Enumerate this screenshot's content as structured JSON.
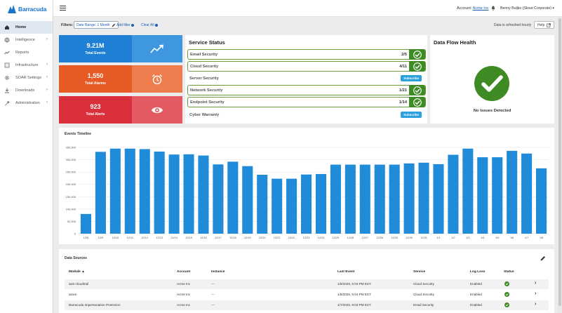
{
  "brand": {
    "name": "Barracuda"
  },
  "sidebar": {
    "items": [
      {
        "label": "Home",
        "icon": "home-icon",
        "active": true,
        "has_children": false
      },
      {
        "label": "Intelligence",
        "icon": "globe-icon",
        "active": false,
        "has_children": true
      },
      {
        "label": "Reports",
        "icon": "trend-icon",
        "active": false,
        "has_children": false
      },
      {
        "label": "Infrastructure",
        "icon": "building-icon",
        "active": false,
        "has_children": true
      },
      {
        "label": "SOAR Settings",
        "icon": "gear-icon",
        "active": false,
        "has_children": true
      },
      {
        "label": "Downloads",
        "icon": "download-icon",
        "active": false,
        "has_children": true
      },
      {
        "label": "Administration",
        "icon": "wrench-icon",
        "active": false,
        "has_children": true
      }
    ]
  },
  "header": {
    "account_label": "Account:",
    "account_name": "Acme Inc",
    "user": "Benny Buljko (Skout Corporate)"
  },
  "filters": {
    "label": "Filters:",
    "chip": "Date Range: 1 Month",
    "add_filter": "Add filter",
    "clear_all": "Clear All",
    "refresh_note": "Data is refreshed hourly",
    "help": "Help"
  },
  "stats": [
    {
      "value": "9.21M",
      "label": "Total Events",
      "icon": "trend-up-icon"
    },
    {
      "value": "1,550",
      "label": "Total Alarms",
      "icon": "alarm-clock-icon"
    },
    {
      "value": "923",
      "label": "Total Alerts",
      "icon": "eye-icon"
    }
  ],
  "service_status": {
    "title": "Service Status",
    "subscribe_label": "Subscribe",
    "rows": [
      {
        "name": "Email Security",
        "count": "2/5",
        "subscribed": true
      },
      {
        "name": "Cloud Security",
        "count": "4/11",
        "subscribed": true
      },
      {
        "name": "Server Security",
        "count": "",
        "subscribed": false
      },
      {
        "name": "Network Security",
        "count": "1/21",
        "subscribed": true
      },
      {
        "name": "Endpoint Security",
        "count": "1/14",
        "subscribed": true
      },
      {
        "name": "Cyber Warranty",
        "count": "",
        "subscribed": false
      }
    ]
  },
  "data_flow": {
    "title": "Data Flow Health",
    "message": "No Issues Detected"
  },
  "chart_data": {
    "type": "bar",
    "title": "Events Timeline",
    "xlabel": "",
    "ylabel": "",
    "ylim": [
      0,
      350000
    ],
    "yticks": [
      0,
      50000,
      100000,
      150000,
      200000,
      250000,
      300000,
      350000
    ],
    "ytick_labels": [
      "0",
      "50,000",
      "100,000",
      "150,000",
      "200,000",
      "250,000",
      "300,000",
      "350,000"
    ],
    "grid": true,
    "color": "#1f8bd9",
    "categories": [
      "12/8",
      "12/9",
      "12/10",
      "12/11",
      "12/12",
      "12/13",
      "12/14",
      "12/15",
      "12/16",
      "12/17",
      "12/18",
      "12/19",
      "12/20",
      "12/21",
      "12/22",
      "12/23",
      "12/24",
      "12/25",
      "12/26",
      "12/27",
      "12/28",
      "12/29",
      "12/30",
      "12/31",
      "1/1",
      "1/2",
      "1/3",
      "1/4",
      "1/5",
      "1/6",
      "1/7",
      "1/8"
    ],
    "values": [
      80000,
      332000,
      345000,
      345000,
      343000,
      333000,
      321000,
      322000,
      317000,
      281000,
      292000,
      274000,
      239000,
      223000,
      223000,
      240000,
      242000,
      280000,
      280000,
      280000,
      280000,
      280000,
      285000,
      288000,
      282000,
      320000,
      345000,
      310000,
      310000,
      336000,
      325000,
      265000
    ]
  },
  "data_sources": {
    "title": "Data Sources",
    "columns": [
      "Module",
      "Account",
      "Instance",
      "Last Event",
      "Service",
      "Log Loss",
      "Status"
    ],
    "rows": [
      {
        "module": "aws-cloudtrail",
        "account": "Acme Inc",
        "instance": "---",
        "last_event": "1/8/2025, 5:04 PM EST",
        "service": "Cloud Security",
        "log_loss": "Enabled"
      },
      {
        "module": "azure",
        "account": "Acme Inc",
        "instance": "---",
        "last_event": "1/8/2025, 5:04 PM EST",
        "service": "Cloud Security",
        "log_loss": "Enabled"
      },
      {
        "module": "Barracuda Impersonation Protection",
        "account": "Acme Inc",
        "instance": "---",
        "last_event": "1/7/2025, 9:03 PM EST",
        "service": "Email Security",
        "log_loss": "Enabled"
      }
    ]
  }
}
